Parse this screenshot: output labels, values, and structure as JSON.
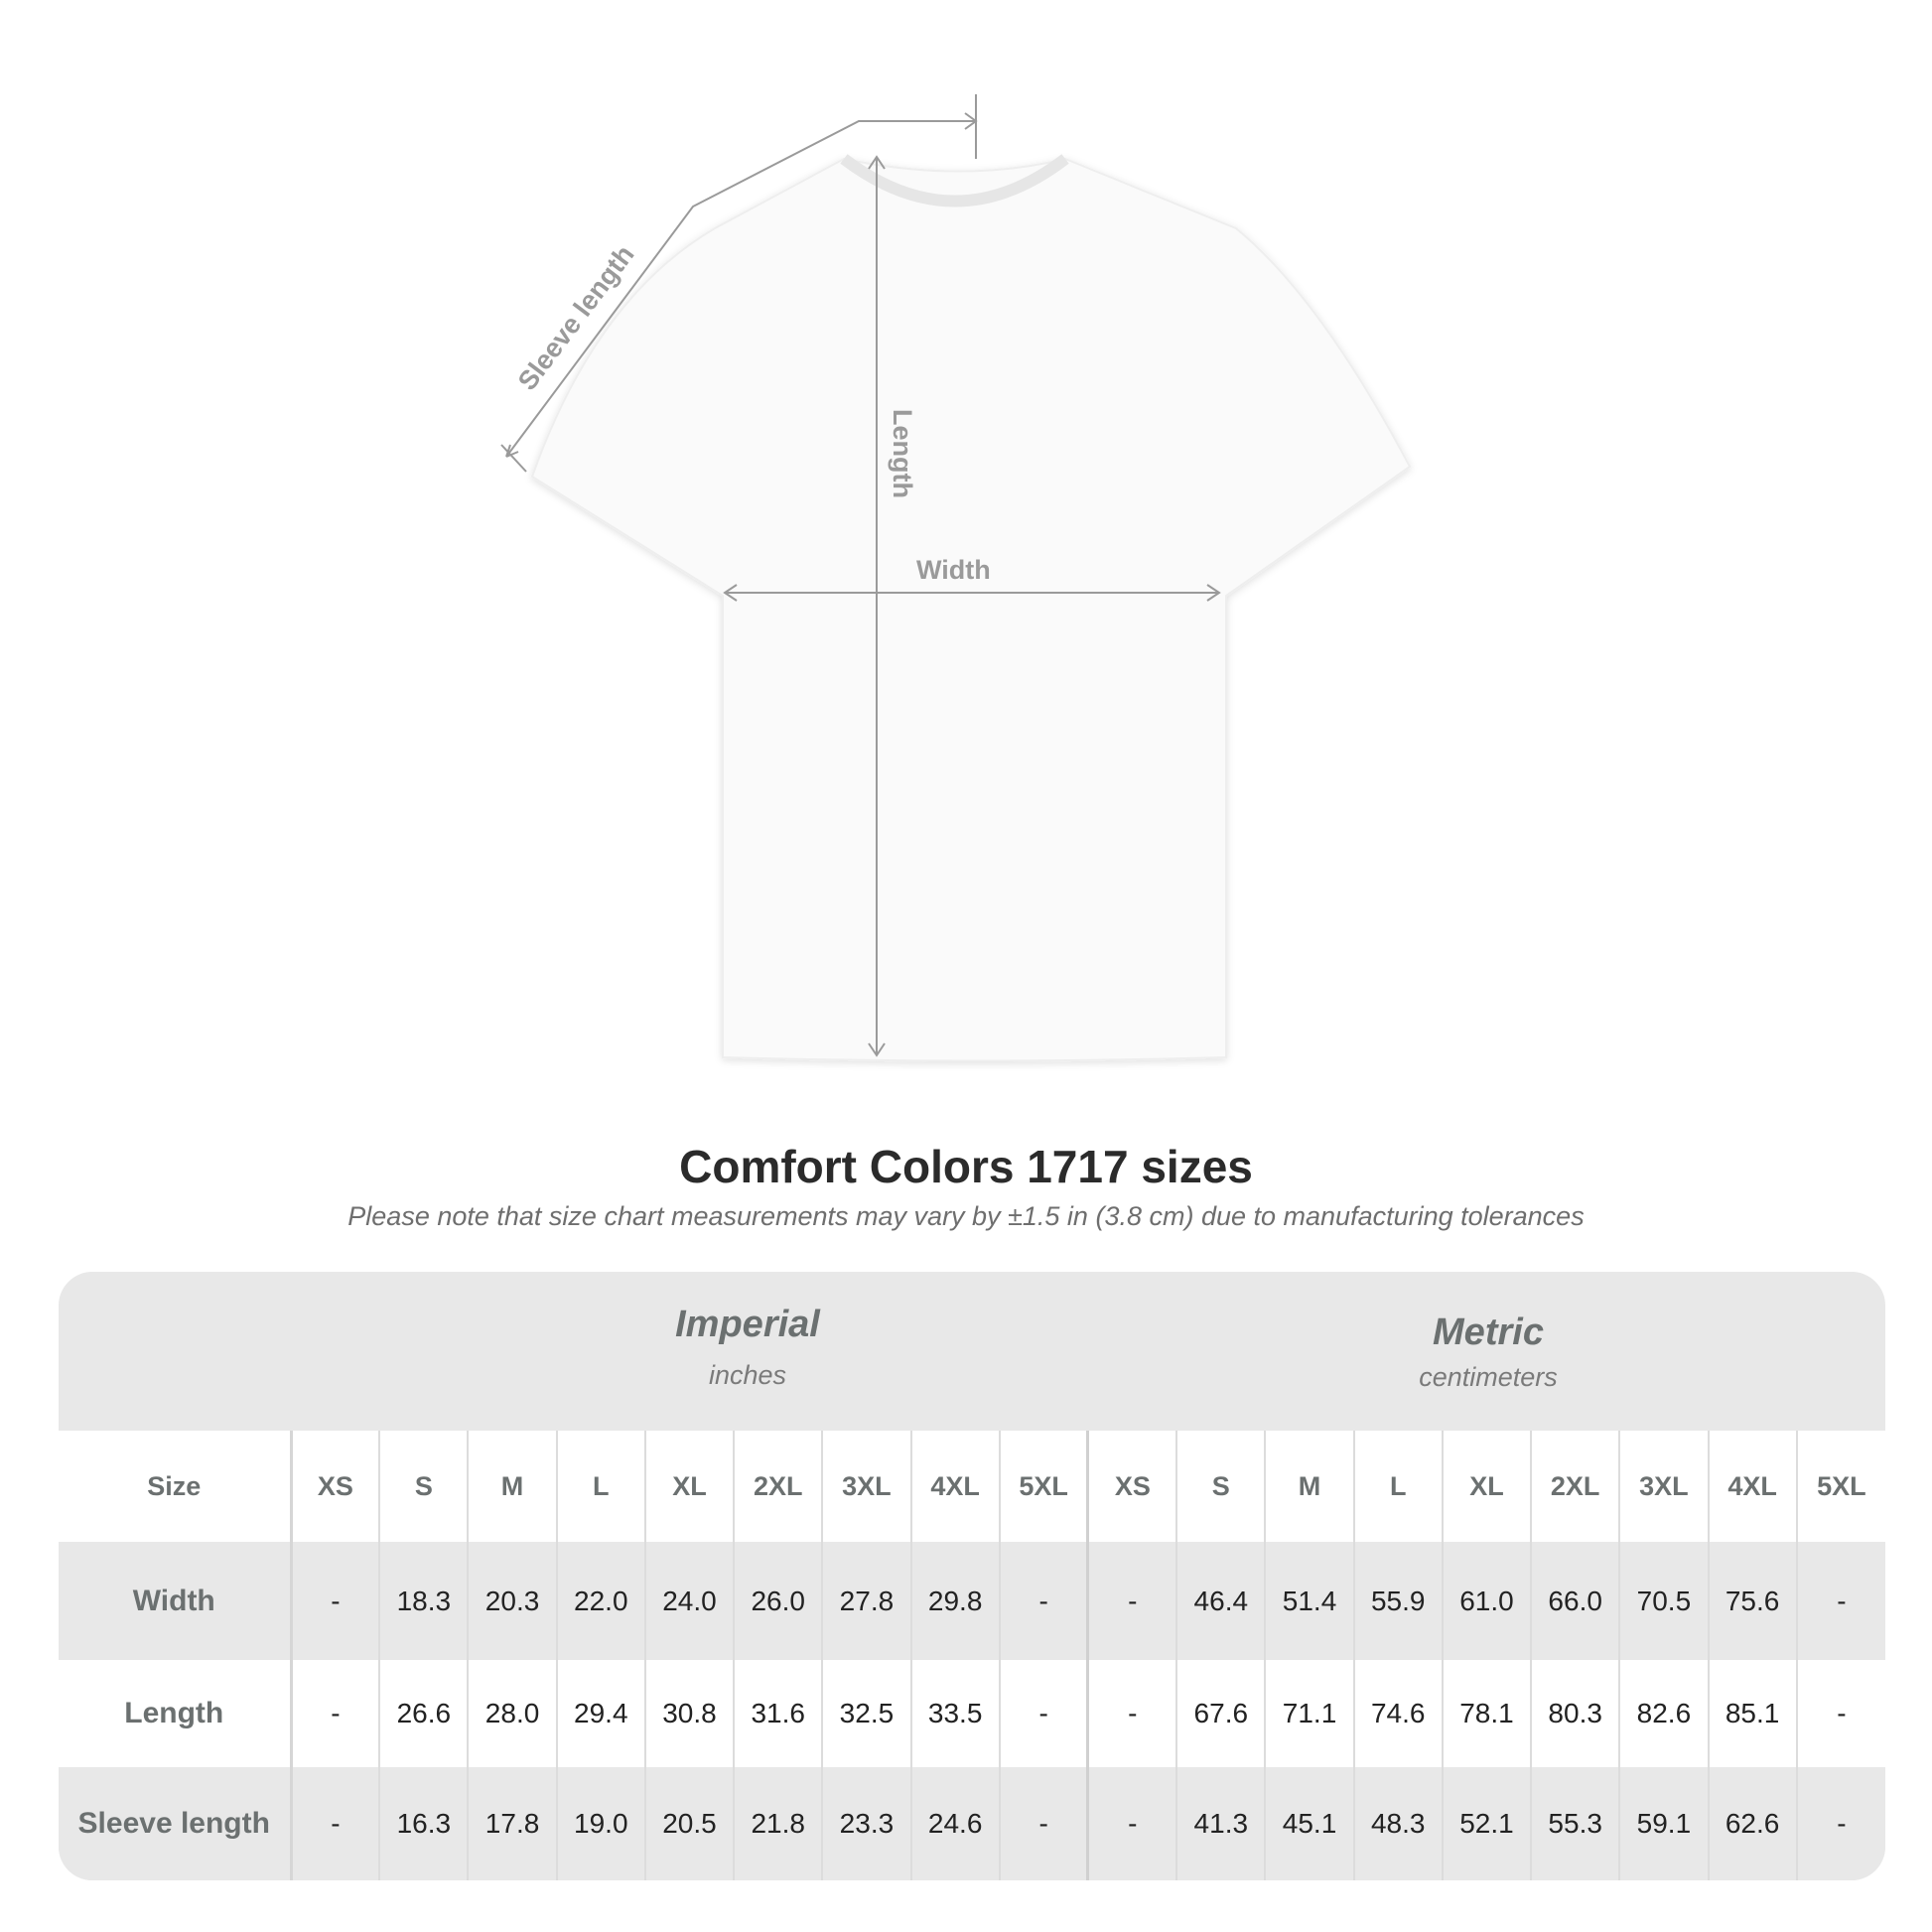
{
  "diagram_labels": {
    "sleeve": "Sleeve length",
    "length": "Length",
    "width": "Width"
  },
  "title": "Comfort Colors 1717 sizes",
  "note": "Please note that size chart measurements may vary by ±1.5 in (3.8 cm) due to manufacturing tolerances",
  "imperial": {
    "heading": "Imperial",
    "unit": "inches"
  },
  "metric": {
    "heading": "Metric",
    "unit": "centimeters"
  },
  "size_label": "Size",
  "sizes": [
    "XS",
    "S",
    "M",
    "L",
    "XL",
    "2XL",
    "3XL",
    "4XL",
    "5XL"
  ],
  "rows": [
    {
      "label": "Width",
      "imperial": [
        "-",
        "18.3",
        "20.3",
        "22.0",
        "24.0",
        "26.0",
        "27.8",
        "29.8",
        "-"
      ],
      "metric": [
        "-",
        "46.4",
        "51.4",
        "55.9",
        "61.0",
        "66.0",
        "70.5",
        "75.6",
        "-"
      ]
    },
    {
      "label": "Length",
      "imperial": [
        "-",
        "26.6",
        "28.0",
        "29.4",
        "30.8",
        "31.6",
        "32.5",
        "33.5",
        "-"
      ],
      "metric": [
        "-",
        "67.6",
        "71.1",
        "74.6",
        "78.1",
        "80.3",
        "82.6",
        "85.1",
        "-"
      ]
    },
    {
      "label": "Sleeve length",
      "imperial": [
        "-",
        "16.3",
        "17.8",
        "19.0",
        "20.5",
        "21.8",
        "23.3",
        "24.6",
        "-"
      ],
      "metric": [
        "-",
        "41.3",
        "45.1",
        "48.3",
        "52.1",
        "55.3",
        "59.1",
        "62.6",
        "-"
      ]
    }
  ]
}
